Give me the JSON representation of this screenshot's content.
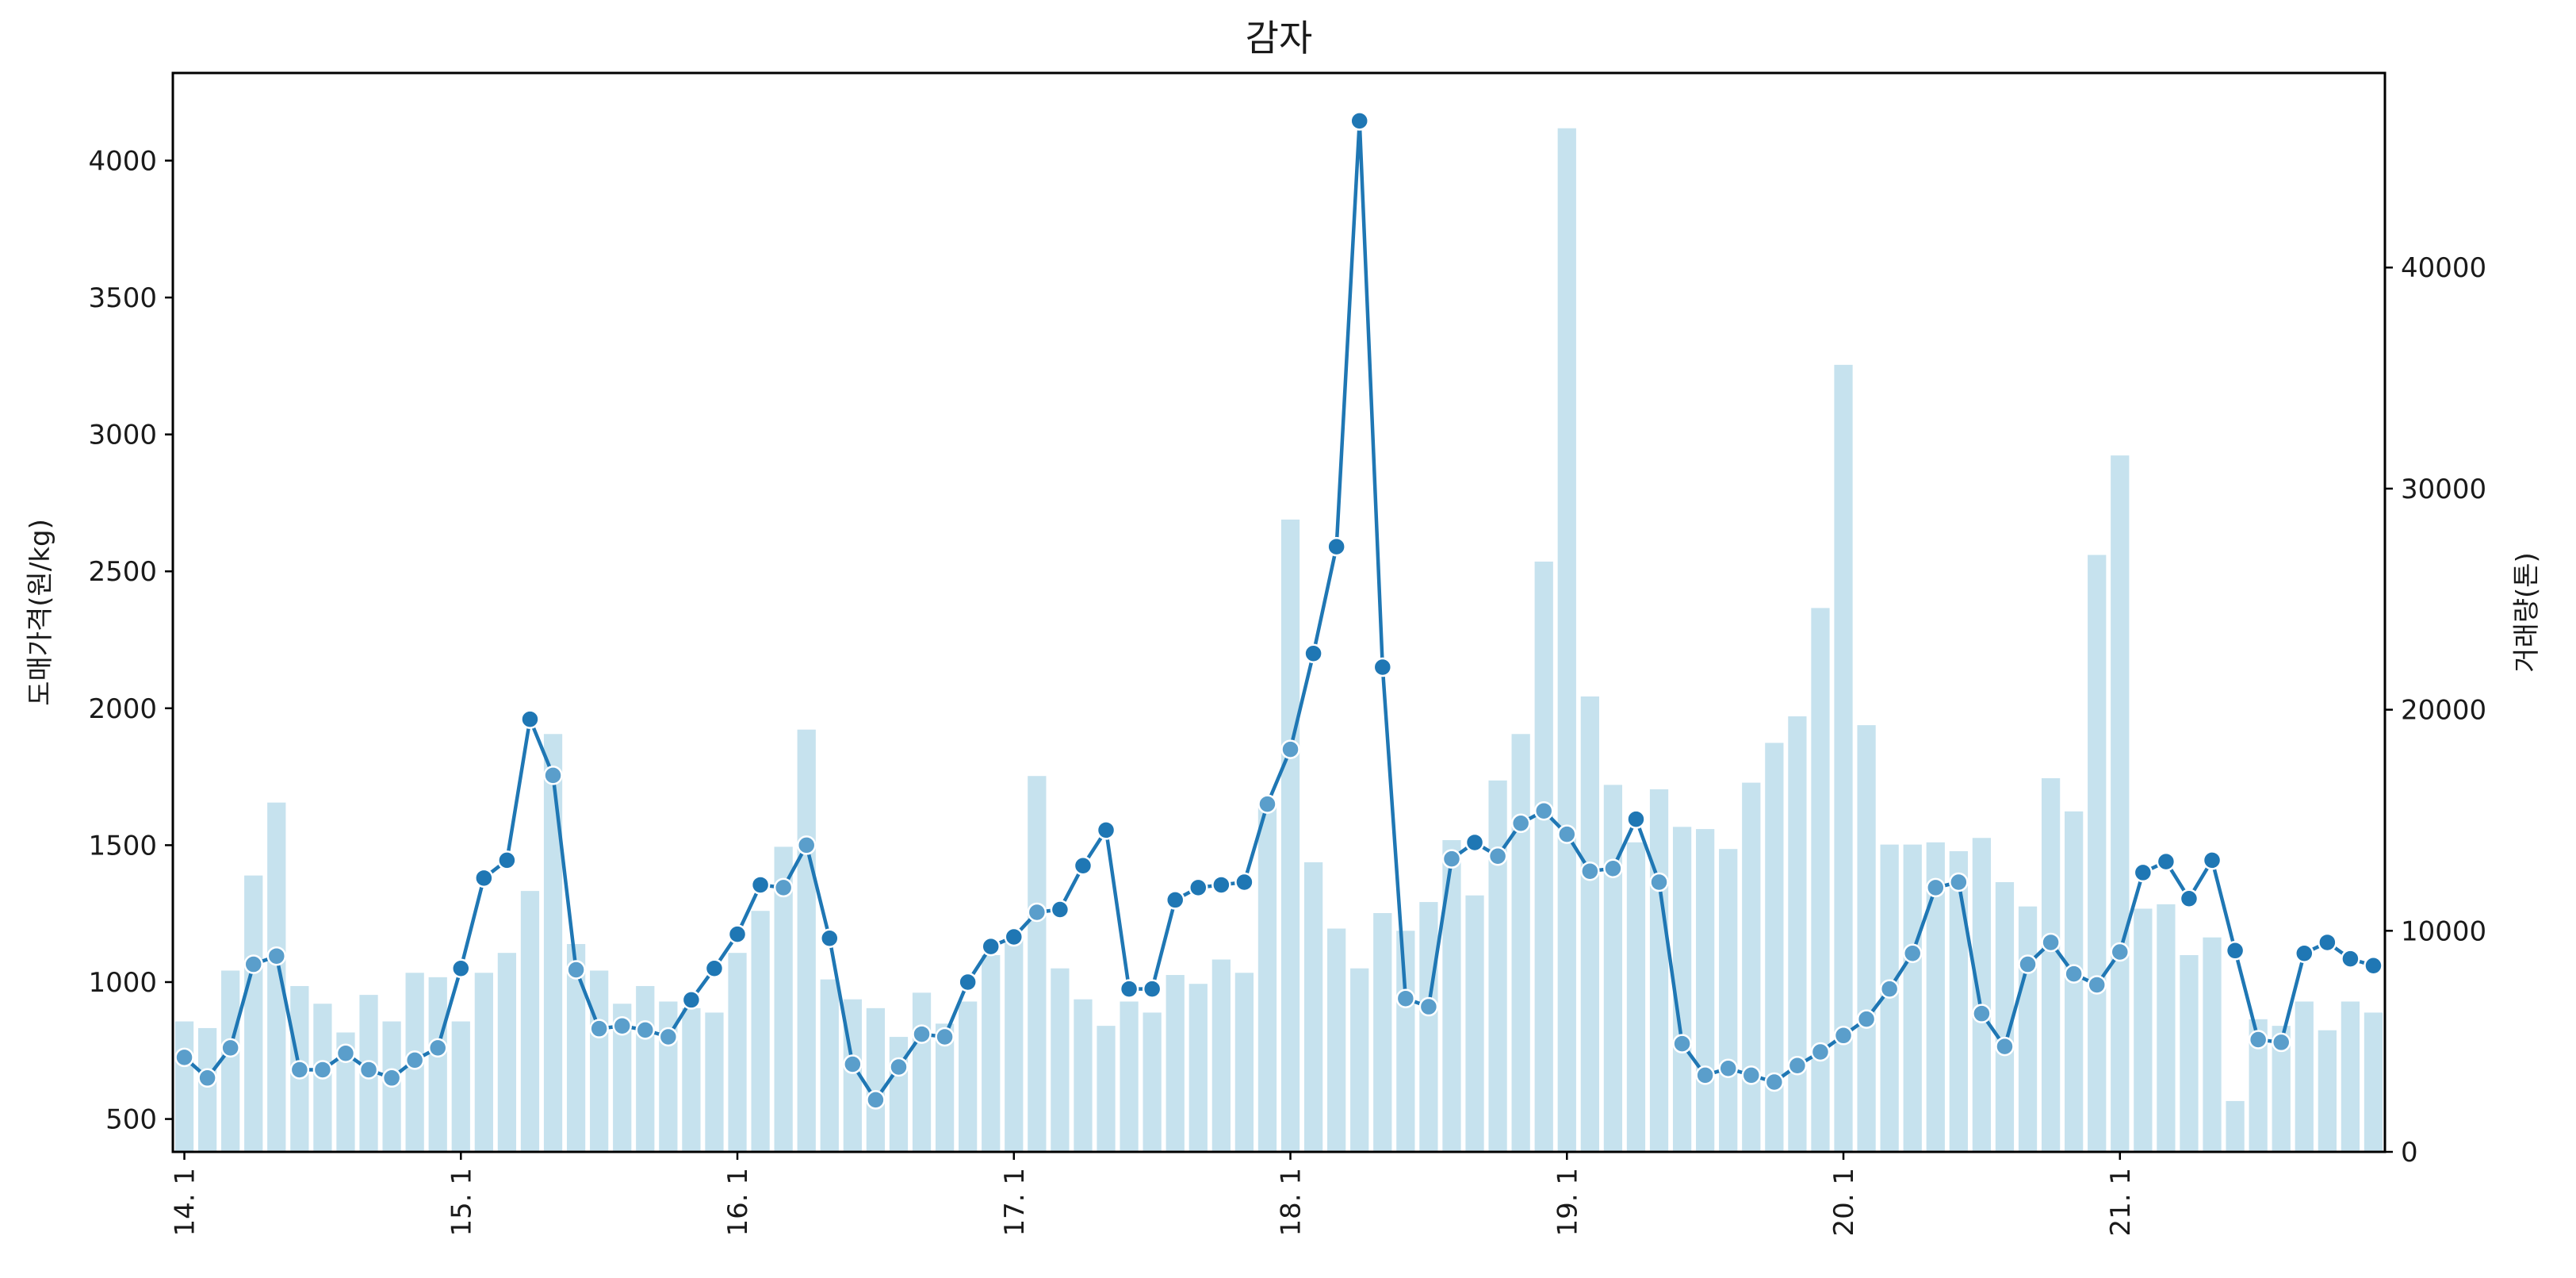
{
  "chart_data": {
    "type": "bar+line",
    "title": "감자",
    "ylabel_left": "도매가격(원/kg)",
    "ylabel_right": "거래량(톤)",
    "xlabel": "",
    "ylim_left": [
      380,
      4320
    ],
    "ylim_right": [
      0,
      48800
    ],
    "yticks_left": [
      "500",
      "1000",
      "1500",
      "2000",
      "2500",
      "3000",
      "3500",
      "4000"
    ],
    "yticks_right": [
      "0",
      "10000",
      "20000",
      "30000",
      "40000"
    ],
    "x_tick_labels": [
      "14. 1",
      "15. 1",
      "16. 1",
      "17. 1",
      "18. 1",
      "19. 1",
      "20. 1",
      "21. 1"
    ],
    "x_tick_indices": [
      0,
      12,
      24,
      36,
      48,
      60,
      72,
      84
    ],
    "period_count": 96,
    "series": [
      {
        "name": "거래량(톤)",
        "axis": "right",
        "kind": "bar",
        "color": "#c6e2ee",
        "values": [
          5900,
          5600,
          8200,
          12500,
          15800,
          7500,
          6700,
          5400,
          7100,
          5900,
          8100,
          7900,
          5900,
          8100,
          9000,
          11800,
          18900,
          9400,
          8200,
          6700,
          7500,
          6800,
          6500,
          6300,
          9000,
          10900,
          13800,
          19100,
          7800,
          6900,
          6500,
          5200,
          7200,
          5800,
          6800,
          8900,
          9700,
          17000,
          8300,
          6900,
          5700,
          6800,
          6300,
          8000,
          7600,
          8700,
          8100,
          15900,
          28600,
          13100,
          10100,
          8300,
          10800,
          10000,
          11300,
          14100,
          11600,
          16800,
          18900,
          26700,
          46300,
          20600,
          16600,
          14000,
          16400,
          14700,
          14600,
          13700,
          16700,
          18500,
          19700,
          24600,
          35600,
          19300,
          13900,
          13900,
          14000,
          13600,
          14200,
          12200,
          11100,
          16900,
          15400,
          27000,
          31500,
          11000,
          11200,
          8900,
          9700,
          2300,
          6000,
          5700,
          6800,
          5500,
          6800,
          6300
        ]
      },
      {
        "name": "도매가격(원/kg)",
        "axis": "left",
        "kind": "line",
        "color": "#1f77b4",
        "marker_light_color": "#5a9ecb",
        "values": [
          725,
          650,
          760,
          1065,
          1095,
          680,
          680,
          740,
          680,
          650,
          715,
          760,
          1050,
          1380,
          1445,
          1960,
          1755,
          1045,
          830,
          840,
          825,
          800,
          935,
          1050,
          1175,
          1355,
          1345,
          1500,
          1160,
          700,
          570,
          690,
          810,
          800,
          1000,
          1130,
          1165,
          1255,
          1265,
          1425,
          1555,
          975,
          975,
          1300,
          1345,
          1355,
          1365,
          1650,
          1850,
          2200,
          2590,
          4145,
          2150,
          940,
          910,
          1450,
          1510,
          1460,
          1580,
          1625,
          1540,
          1405,
          1415,
          1595,
          1365,
          775,
          660,
          685,
          660,
          635,
          695,
          745,
          805,
          865,
          975,
          1105,
          1345,
          1365,
          885,
          765,
          1065,
          1145,
          1030,
          990,
          1110,
          1400,
          1440,
          1305,
          1445,
          1115,
          790,
          780,
          1105,
          1145,
          1085,
          1060
        ]
      }
    ]
  }
}
